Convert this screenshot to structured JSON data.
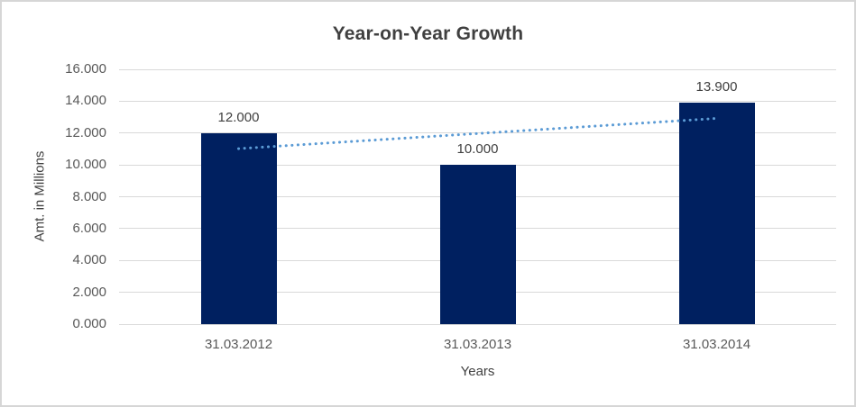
{
  "chart_data": {
    "type": "bar",
    "title": "Year-on-Year Growth",
    "xlabel": "Years",
    "ylabel": "Amt. in Millions",
    "categories": [
      "31.03.2012",
      "31.03.2013",
      "31.03.2014"
    ],
    "values": [
      12.0,
      10.0,
      13.9
    ],
    "data_labels": [
      "12.000",
      "10.000",
      "13.900"
    ],
    "ylim": [
      0,
      16
    ],
    "ytick_step": 2,
    "ytick_labels": [
      "0.000",
      "2.000",
      "4.000",
      "6.000",
      "8.000",
      "10.000",
      "12.000",
      "14.000",
      "16.000"
    ],
    "grid": true,
    "legend": "none",
    "bar_color": "#002060",
    "gridline_color": "#d9d9d9",
    "trendline": {
      "type": "linear",
      "style": "dotted",
      "color": "#5B9BD5",
      "start_value": 11.02,
      "end_value": 12.92
    }
  },
  "colors": {
    "title_text": "#404040",
    "tick_text": "#595959",
    "data_label_text": "#404040",
    "border": "#d6d6d6",
    "background": "#ffffff"
  }
}
